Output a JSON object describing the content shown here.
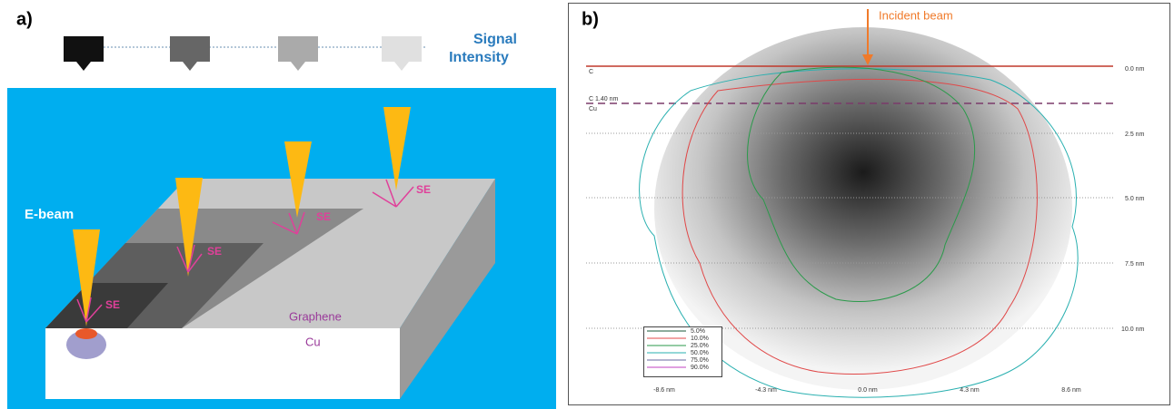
{
  "panel_a": {
    "label": "a)",
    "signal_intensity": [
      "Signal",
      "Intensity"
    ],
    "e_beam": "E-beam",
    "se_labels": [
      "SE",
      "SE",
      "SE",
      "SE"
    ],
    "graphene": "Graphene",
    "cu": "Cu"
  },
  "panel_b": {
    "label": "b)",
    "incident_beam": "Incident beam",
    "layer_labels": [
      "C",
      "C 1.40 nm",
      "Cu"
    ],
    "depth_labels": [
      "0.0 nm",
      "2.5 nm",
      "5.0 nm",
      "7.5 nm",
      "10.0 nm"
    ],
    "x_labels": [
      "-8.6 nm",
      "-4.3 nm",
      "0.0 nm",
      "4.3 nm",
      "8.6 nm"
    ],
    "legend": [
      "5.0%",
      "10.0%",
      "25.0%",
      "50.0%",
      "75.0%",
      "90.0%"
    ]
  }
}
